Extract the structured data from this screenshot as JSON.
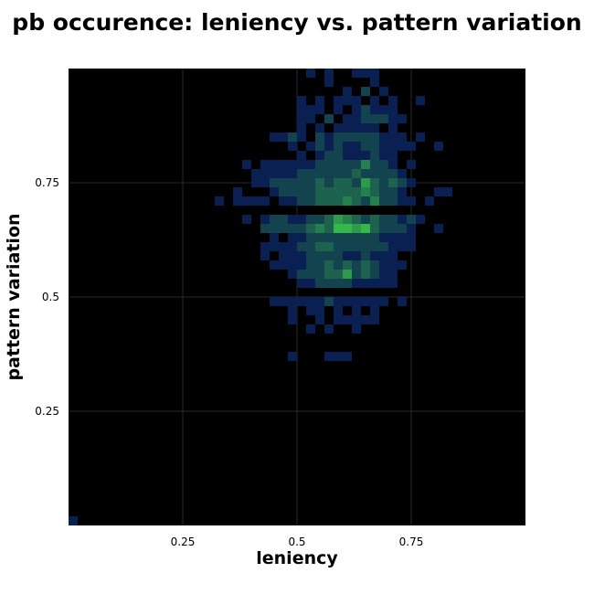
{
  "chart_data": {
    "type": "heatmap",
    "title": "pb occurence: leniency vs. pattern variation",
    "xlabel": "leniency",
    "ylabel": "pattern variation",
    "xlim": [
      0,
      1
    ],
    "ylim": [
      0,
      1
    ],
    "grid": true,
    "x_ticks": [
      "0.25",
      "0.5",
      "0.75"
    ],
    "y_ticks": [
      "0.25",
      "0.5",
      "0.75"
    ],
    "bin_size": 0.02,
    "colors": {
      "background": "#000000",
      "low": "#0a1f52",
      "high": "#33b84a",
      "grid": "#2a2a2a"
    },
    "cells": [
      [
        0.01,
        0.01,
        1
      ],
      [
        0.53,
        0.99,
        1
      ],
      [
        0.57,
        0.99,
        1
      ],
      [
        0.63,
        0.99,
        1
      ],
      [
        0.65,
        0.99,
        1
      ],
      [
        0.67,
        0.99,
        1
      ],
      [
        0.57,
        0.97,
        1
      ],
      [
        0.67,
        0.97,
        1
      ],
      [
        0.61,
        0.95,
        1
      ],
      [
        0.65,
        0.95,
        2
      ],
      [
        0.69,
        0.95,
        1
      ],
      [
        0.51,
        0.93,
        1
      ],
      [
        0.55,
        0.93,
        1
      ],
      [
        0.59,
        0.93,
        1
      ],
      [
        0.61,
        0.93,
        1
      ],
      [
        0.63,
        0.93,
        1
      ],
      [
        0.67,
        0.93,
        1
      ],
      [
        0.71,
        0.93,
        1
      ],
      [
        0.77,
        0.93,
        1
      ],
      [
        0.51,
        0.91,
        1
      ],
      [
        0.53,
        0.91,
        1
      ],
      [
        0.55,
        0.91,
        1
      ],
      [
        0.59,
        0.91,
        1
      ],
      [
        0.63,
        0.91,
        1
      ],
      [
        0.65,
        0.91,
        2
      ],
      [
        0.67,
        0.91,
        1
      ],
      [
        0.69,
        0.91,
        1
      ],
      [
        0.71,
        0.91,
        1
      ],
      [
        0.51,
        0.89,
        1
      ],
      [
        0.53,
        0.89,
        1
      ],
      [
        0.57,
        0.89,
        2
      ],
      [
        0.61,
        0.89,
        1
      ],
      [
        0.63,
        0.89,
        1
      ],
      [
        0.65,
        0.89,
        2
      ],
      [
        0.67,
        0.89,
        2
      ],
      [
        0.69,
        0.89,
        2
      ],
      [
        0.71,
        0.89,
        1
      ],
      [
        0.73,
        0.89,
        1
      ],
      [
        0.51,
        0.87,
        1
      ],
      [
        0.55,
        0.87,
        1
      ],
      [
        0.59,
        0.87,
        1
      ],
      [
        0.61,
        0.87,
        1
      ],
      [
        0.63,
        0.87,
        1
      ],
      [
        0.65,
        0.87,
        1
      ],
      [
        0.67,
        0.87,
        1
      ],
      [
        0.71,
        0.87,
        1
      ],
      [
        0.45,
        0.85,
        1
      ],
      [
        0.47,
        0.85,
        1
      ],
      [
        0.49,
        0.85,
        2
      ],
      [
        0.51,
        0.85,
        1
      ],
      [
        0.55,
        0.85,
        2
      ],
      [
        0.57,
        0.85,
        1
      ],
      [
        0.59,
        0.85,
        2
      ],
      [
        0.61,
        0.85,
        2
      ],
      [
        0.63,
        0.85,
        2
      ],
      [
        0.65,
        0.85,
        2
      ],
      [
        0.67,
        0.85,
        2
      ],
      [
        0.69,
        0.85,
        1
      ],
      [
        0.71,
        0.85,
        1
      ],
      [
        0.73,
        0.85,
        1
      ],
      [
        0.77,
        0.85,
        1
      ],
      [
        0.49,
        0.83,
        1
      ],
      [
        0.53,
        0.83,
        1
      ],
      [
        0.55,
        0.83,
        2
      ],
      [
        0.57,
        0.83,
        1
      ],
      [
        0.59,
        0.83,
        2
      ],
      [
        0.61,
        0.83,
        1
      ],
      [
        0.63,
        0.83,
        1
      ],
      [
        0.65,
        0.83,
        2
      ],
      [
        0.67,
        0.83,
        2
      ],
      [
        0.69,
        0.83,
        1
      ],
      [
        0.71,
        0.83,
        1
      ],
      [
        0.73,
        0.83,
        1
      ],
      [
        0.75,
        0.83,
        1
      ],
      [
        0.81,
        0.83,
        1
      ],
      [
        0.51,
        0.81,
        1
      ],
      [
        0.55,
        0.81,
        1
      ],
      [
        0.57,
        0.81,
        2
      ],
      [
        0.59,
        0.81,
        2
      ],
      [
        0.61,
        0.81,
        1
      ],
      [
        0.63,
        0.81,
        1
      ],
      [
        0.65,
        0.81,
        1
      ],
      [
        0.67,
        0.81,
        2
      ],
      [
        0.69,
        0.81,
        1
      ],
      [
        0.71,
        0.81,
        1
      ],
      [
        0.39,
        0.79,
        1
      ],
      [
        0.43,
        0.79,
        1
      ],
      [
        0.45,
        0.79,
        1
      ],
      [
        0.47,
        0.79,
        1
      ],
      [
        0.49,
        0.79,
        1
      ],
      [
        0.51,
        0.79,
        1
      ],
      [
        0.53,
        0.79,
        1
      ],
      [
        0.55,
        0.79,
        2
      ],
      [
        0.57,
        0.79,
        2
      ],
      [
        0.59,
        0.79,
        2
      ],
      [
        0.61,
        0.79,
        2
      ],
      [
        0.63,
        0.79,
        2
      ],
      [
        0.65,
        0.79,
        4
      ],
      [
        0.67,
        0.79,
        2
      ],
      [
        0.69,
        0.79,
        2
      ],
      [
        0.71,
        0.79,
        1
      ],
      [
        0.75,
        0.79,
        1
      ],
      [
        0.41,
        0.77,
        1
      ],
      [
        0.43,
        0.77,
        1
      ],
      [
        0.45,
        0.77,
        1
      ],
      [
        0.47,
        0.77,
        1
      ],
      [
        0.49,
        0.77,
        1
      ],
      [
        0.51,
        0.77,
        2
      ],
      [
        0.53,
        0.77,
        2
      ],
      [
        0.55,
        0.77,
        2
      ],
      [
        0.57,
        0.77,
        2
      ],
      [
        0.59,
        0.77,
        2
      ],
      [
        0.61,
        0.77,
        2
      ],
      [
        0.63,
        0.77,
        3
      ],
      [
        0.65,
        0.77,
        2
      ],
      [
        0.67,
        0.77,
        2
      ],
      [
        0.69,
        0.77,
        2
      ],
      [
        0.71,
        0.77,
        2
      ],
      [
        0.73,
        0.77,
        1
      ],
      [
        0.41,
        0.75,
        1
      ],
      [
        0.43,
        0.75,
        1
      ],
      [
        0.45,
        0.75,
        2
      ],
      [
        0.47,
        0.75,
        2
      ],
      [
        0.49,
        0.75,
        2
      ],
      [
        0.51,
        0.75,
        2
      ],
      [
        0.53,
        0.75,
        2
      ],
      [
        0.55,
        0.75,
        3
      ],
      [
        0.57,
        0.75,
        2
      ],
      [
        0.59,
        0.75,
        3
      ],
      [
        0.61,
        0.75,
        3
      ],
      [
        0.63,
        0.75,
        2
      ],
      [
        0.65,
        0.75,
        5
      ],
      [
        0.67,
        0.75,
        3
      ],
      [
        0.69,
        0.75,
        2
      ],
      [
        0.71,
        0.75,
        3
      ],
      [
        0.73,
        0.75,
        2
      ],
      [
        0.75,
        0.75,
        1
      ],
      [
        0.37,
        0.73,
        1
      ],
      [
        0.45,
        0.73,
        1
      ],
      [
        0.47,
        0.73,
        2
      ],
      [
        0.49,
        0.73,
        2
      ],
      [
        0.51,
        0.73,
        2
      ],
      [
        0.53,
        0.73,
        2
      ],
      [
        0.55,
        0.73,
        3
      ],
      [
        0.57,
        0.73,
        3
      ],
      [
        0.59,
        0.73,
        3
      ],
      [
        0.61,
        0.73,
        3
      ],
      [
        0.63,
        0.73,
        3
      ],
      [
        0.65,
        0.73,
        4
      ],
      [
        0.67,
        0.73,
        3
      ],
      [
        0.69,
        0.73,
        2
      ],
      [
        0.71,
        0.73,
        2
      ],
      [
        0.73,
        0.73,
        1
      ],
      [
        0.81,
        0.73,
        1
      ],
      [
        0.83,
        0.73,
        1
      ],
      [
        0.33,
        0.71,
        1
      ],
      [
        0.37,
        0.71,
        1
      ],
      [
        0.39,
        0.71,
        1
      ],
      [
        0.41,
        0.71,
        1
      ],
      [
        0.43,
        0.71,
        1
      ],
      [
        0.47,
        0.71,
        1
      ],
      [
        0.49,
        0.71,
        1
      ],
      [
        0.51,
        0.71,
        2
      ],
      [
        0.53,
        0.71,
        2
      ],
      [
        0.55,
        0.71,
        3
      ],
      [
        0.57,
        0.71,
        3
      ],
      [
        0.59,
        0.71,
        3
      ],
      [
        0.61,
        0.71,
        4
      ],
      [
        0.63,
        0.71,
        3
      ],
      [
        0.65,
        0.71,
        2
      ],
      [
        0.67,
        0.71,
        4
      ],
      [
        0.69,
        0.71,
        2
      ],
      [
        0.71,
        0.71,
        2
      ],
      [
        0.73,
        0.71,
        1
      ],
      [
        0.75,
        0.71,
        1
      ],
      [
        0.79,
        0.71,
        1
      ],
      [
        0.39,
        0.67,
        1
      ],
      [
        0.43,
        0.67,
        1
      ],
      [
        0.45,
        0.67,
        2
      ],
      [
        0.47,
        0.67,
        2
      ],
      [
        0.49,
        0.67,
        1
      ],
      [
        0.51,
        0.67,
        1
      ],
      [
        0.53,
        0.67,
        2
      ],
      [
        0.55,
        0.67,
        2
      ],
      [
        0.57,
        0.67,
        3
      ],
      [
        0.59,
        0.67,
        5
      ],
      [
        0.61,
        0.67,
        4
      ],
      [
        0.63,
        0.67,
        3
      ],
      [
        0.65,
        0.67,
        2
      ],
      [
        0.67,
        0.67,
        3
      ],
      [
        0.69,
        0.67,
        2
      ],
      [
        0.71,
        0.67,
        2
      ],
      [
        0.73,
        0.67,
        1
      ],
      [
        0.75,
        0.67,
        2
      ],
      [
        0.77,
        0.67,
        1
      ],
      [
        0.43,
        0.65,
        2
      ],
      [
        0.45,
        0.65,
        2
      ],
      [
        0.47,
        0.65,
        2
      ],
      [
        0.49,
        0.65,
        2
      ],
      [
        0.51,
        0.65,
        2
      ],
      [
        0.53,
        0.65,
        3
      ],
      [
        0.55,
        0.65,
        4
      ],
      [
        0.57,
        0.65,
        3
      ],
      [
        0.59,
        0.65,
        6
      ],
      [
        0.61,
        0.65,
        6
      ],
      [
        0.63,
        0.65,
        5
      ],
      [
        0.65,
        0.65,
        6
      ],
      [
        0.67,
        0.65,
        3
      ],
      [
        0.69,
        0.65,
        2
      ],
      [
        0.71,
        0.65,
        2
      ],
      [
        0.73,
        0.65,
        2
      ],
      [
        0.75,
        0.65,
        1
      ],
      [
        0.81,
        0.65,
        1
      ],
      [
        0.45,
        0.63,
        1
      ],
      [
        0.49,
        0.63,
        1
      ],
      [
        0.51,
        0.63,
        1
      ],
      [
        0.53,
        0.63,
        2
      ],
      [
        0.55,
        0.63,
        2
      ],
      [
        0.57,
        0.63,
        2
      ],
      [
        0.59,
        0.63,
        2
      ],
      [
        0.61,
        0.63,
        2
      ],
      [
        0.63,
        0.63,
        2
      ],
      [
        0.65,
        0.63,
        2
      ],
      [
        0.67,
        0.63,
        2
      ],
      [
        0.69,
        0.63,
        1
      ],
      [
        0.71,
        0.63,
        1
      ],
      [
        0.73,
        0.63,
        1
      ],
      [
        0.75,
        0.63,
        1
      ],
      [
        0.43,
        0.61,
        1
      ],
      [
        0.45,
        0.61,
        1
      ],
      [
        0.47,
        0.61,
        1
      ],
      [
        0.49,
        0.61,
        1
      ],
      [
        0.51,
        0.61,
        2
      ],
      [
        0.53,
        0.61,
        2
      ],
      [
        0.55,
        0.61,
        3
      ],
      [
        0.57,
        0.61,
        3
      ],
      [
        0.59,
        0.61,
        2
      ],
      [
        0.61,
        0.61,
        2
      ],
      [
        0.63,
        0.61,
        2
      ],
      [
        0.65,
        0.61,
        2
      ],
      [
        0.67,
        0.61,
        2
      ],
      [
        0.69,
        0.61,
        2
      ],
      [
        0.71,
        0.61,
        1
      ],
      [
        0.73,
        0.61,
        1
      ],
      [
        0.75,
        0.61,
        1
      ],
      [
        0.43,
        0.59,
        1
      ],
      [
        0.47,
        0.59,
        1
      ],
      [
        0.49,
        0.59,
        1
      ],
      [
        0.51,
        0.59,
        1
      ],
      [
        0.53,
        0.59,
        2
      ],
      [
        0.55,
        0.59,
        2
      ],
      [
        0.57,
        0.59,
        2
      ],
      [
        0.59,
        0.59,
        2
      ],
      [
        0.61,
        0.59,
        1
      ],
      [
        0.63,
        0.59,
        1
      ],
      [
        0.65,
        0.59,
        2
      ],
      [
        0.67,
        0.59,
        1
      ],
      [
        0.69,
        0.59,
        1
      ],
      [
        0.71,
        0.59,
        1
      ],
      [
        0.45,
        0.57,
        1
      ],
      [
        0.47,
        0.57,
        1
      ],
      [
        0.49,
        0.57,
        1
      ],
      [
        0.51,
        0.57,
        1
      ],
      [
        0.53,
        0.57,
        2
      ],
      [
        0.55,
        0.57,
        2
      ],
      [
        0.57,
        0.57,
        3
      ],
      [
        0.59,
        0.57,
        2
      ],
      [
        0.61,
        0.57,
        3
      ],
      [
        0.63,
        0.57,
        2
      ],
      [
        0.65,
        0.57,
        3
      ],
      [
        0.67,
        0.57,
        2
      ],
      [
        0.69,
        0.57,
        1
      ],
      [
        0.71,
        0.57,
        1
      ],
      [
        0.73,
        0.57,
        1
      ],
      [
        0.49,
        0.55,
        1
      ],
      [
        0.51,
        0.55,
        2
      ],
      [
        0.53,
        0.55,
        2
      ],
      [
        0.55,
        0.55,
        2
      ],
      [
        0.57,
        0.55,
        3
      ],
      [
        0.59,
        0.55,
        3
      ],
      [
        0.61,
        0.55,
        5
      ],
      [
        0.63,
        0.55,
        2
      ],
      [
        0.65,
        0.55,
        3
      ],
      [
        0.67,
        0.55,
        2
      ],
      [
        0.69,
        0.55,
        1
      ],
      [
        0.71,
        0.55,
        1
      ],
      [
        0.51,
        0.53,
        1
      ],
      [
        0.53,
        0.53,
        1
      ],
      [
        0.55,
        0.53,
        2
      ],
      [
        0.57,
        0.53,
        2
      ],
      [
        0.59,
        0.53,
        2
      ],
      [
        0.61,
        0.53,
        2
      ],
      [
        0.63,
        0.53,
        1
      ],
      [
        0.65,
        0.53,
        1
      ],
      [
        0.67,
        0.53,
        1
      ],
      [
        0.69,
        0.53,
        1
      ],
      [
        0.71,
        0.53,
        1
      ],
      [
        0.45,
        0.49,
        1
      ],
      [
        0.47,
        0.49,
        1
      ],
      [
        0.49,
        0.49,
        1
      ],
      [
        0.51,
        0.49,
        1
      ],
      [
        0.53,
        0.49,
        1
      ],
      [
        0.55,
        0.49,
        1
      ],
      [
        0.57,
        0.49,
        2
      ],
      [
        0.59,
        0.49,
        1
      ],
      [
        0.61,
        0.49,
        1
      ],
      [
        0.63,
        0.49,
        1
      ],
      [
        0.65,
        0.49,
        1
      ],
      [
        0.67,
        0.49,
        1
      ],
      [
        0.69,
        0.49,
        1
      ],
      [
        0.73,
        0.49,
        1
      ],
      [
        0.49,
        0.47,
        1
      ],
      [
        0.53,
        0.47,
        1
      ],
      [
        0.55,
        0.47,
        1
      ],
      [
        0.59,
        0.47,
        1
      ],
      [
        0.63,
        0.47,
        1
      ],
      [
        0.67,
        0.47,
        1
      ],
      [
        0.49,
        0.45,
        1
      ],
      [
        0.55,
        0.45,
        1
      ],
      [
        0.59,
        0.45,
        1
      ],
      [
        0.61,
        0.45,
        1
      ],
      [
        0.63,
        0.45,
        1
      ],
      [
        0.65,
        0.45,
        1
      ],
      [
        0.67,
        0.45,
        1
      ],
      [
        0.53,
        0.43,
        1
      ],
      [
        0.57,
        0.43,
        1
      ],
      [
        0.63,
        0.43,
        1
      ],
      [
        0.49,
        0.37,
        1
      ],
      [
        0.57,
        0.37,
        1
      ],
      [
        0.59,
        0.37,
        1
      ],
      [
        0.61,
        0.37,
        1
      ]
    ]
  }
}
